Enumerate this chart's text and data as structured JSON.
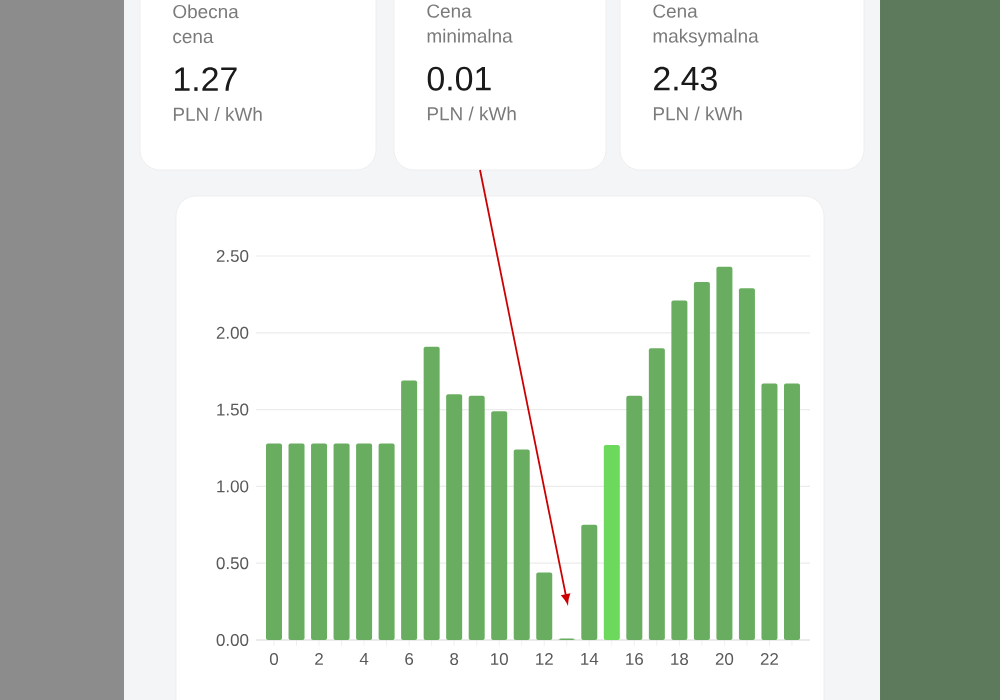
{
  "chart_data": [
    {
      "type": "other",
      "title": "Obecna cena",
      "annotations": [
        "1.27",
        "PLN / kWh"
      ]
    },
    {
      "type": "other",
      "title": "Cena minimalna",
      "annotations": [
        "0.01",
        "PLN / kWh"
      ]
    },
    {
      "type": "other",
      "title": "Cena maksymalna",
      "annotations": [
        "2.43",
        "PLN / kWh"
      ]
    },
    {
      "type": "bar",
      "categories": [
        "0",
        null,
        "2",
        null,
        "4",
        null,
        "6",
        null,
        "8",
        null,
        "10",
        null,
        "12",
        null,
        "14",
        null,
        "16",
        null,
        "18",
        null,
        "20",
        null,
        "22",
        null
      ],
      "values": [
        1.28,
        1.28,
        1.28,
        1.28,
        1.28,
        1.28,
        1.69,
        1.91,
        1.6,
        1.59,
        1.49,
        1.24,
        0.44,
        0.01,
        0.75,
        1.27,
        1.59,
        1.9,
        2.21,
        2.33,
        2.43,
        2.29,
        1.67,
        1.67
      ],
      "colors": [
        "#69ae60",
        "#69ae60",
        "#69ae60",
        "#69ae60",
        "#69ae60",
        "#69ae60",
        "#69ae60",
        "#69ae60",
        "#69ae60",
        "#69ae60",
        "#69ae60",
        "#69ae60",
        "#69ae60",
        "#69ae60",
        "#69ae60",
        "#6cd85c",
        "#69ae60",
        "#69ae60",
        "#69ae60",
        "#69ae60",
        "#69ae60",
        "#69ae60",
        "#69ae60",
        "#69ae60"
      ],
      "ylim": [
        0,
        2.5
      ],
      "yticks": [
        {
          "value": 0,
          "label": "0.00"
        },
        {
          "value": 0.5,
          "label": "0.50"
        },
        {
          "value": 1,
          "label": "1.00"
        },
        {
          "value": 1.5,
          "label": "1.50"
        },
        {
          "value": 2,
          "label": "2.00"
        },
        {
          "value": 2.5,
          "label": "2.50"
        }
      ],
      "grid": "y"
    }
  ]
}
